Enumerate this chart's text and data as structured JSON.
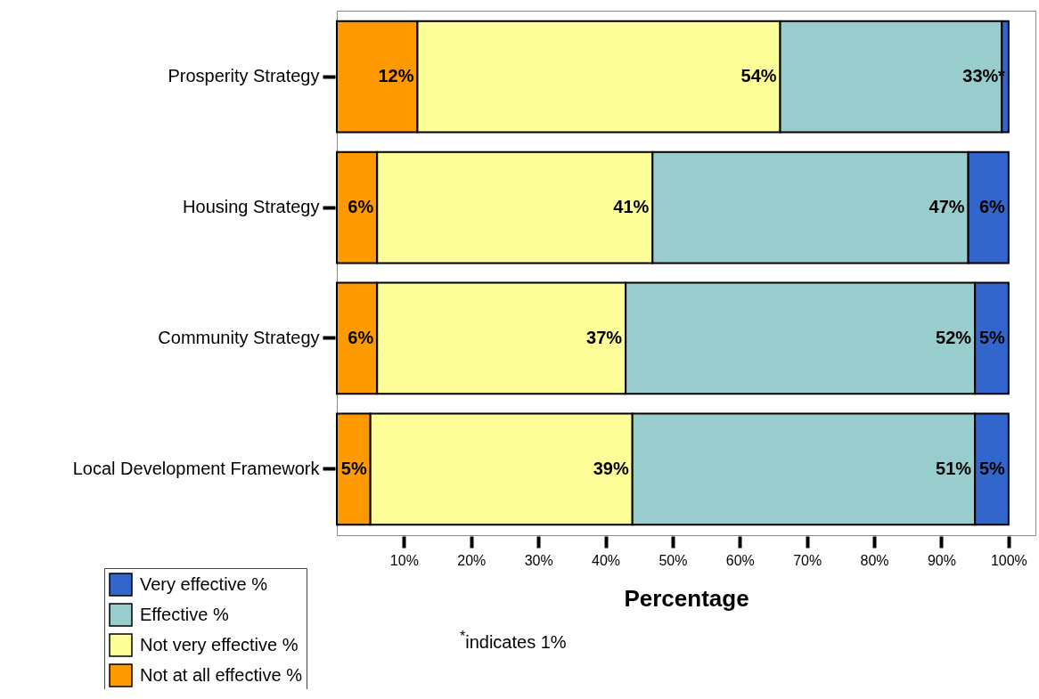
{
  "chart_data": {
    "type": "bar",
    "orientation": "horizontal",
    "stacked": true,
    "categories": [
      "Prosperity Strategy",
      "Housing Strategy",
      "Community Strategy",
      "Local Development Framework"
    ],
    "series": [
      {
        "name": "Not at all effective %",
        "color": "#ff9900",
        "values": [
          12,
          6,
          6,
          5
        ],
        "value_labels": [
          "12%",
          "6%",
          "6%",
          "5%"
        ]
      },
      {
        "name": "Not very effective %",
        "color": "#ffff99",
        "values": [
          54,
          41,
          37,
          39
        ],
        "value_labels": [
          "54%",
          "41%",
          "37%",
          "39%"
        ]
      },
      {
        "name": "Effective %",
        "color": "#99cccc",
        "values": [
          33,
          47,
          52,
          51
        ],
        "value_labels": [
          "33%",
          "47%",
          "52%",
          "51%"
        ]
      },
      {
        "name": "Very effective %",
        "color": "#3366cc",
        "values": [
          1,
          6,
          5,
          5
        ],
        "value_labels": [
          "*",
          "6%",
          "5%",
          "5%"
        ]
      }
    ],
    "xlabel": "Percentage",
    "xlim": [
      0,
      104
    ],
    "xticks": [
      {
        "value": 10,
        "label": "10%"
      },
      {
        "value": 20,
        "label": "20%"
      },
      {
        "value": 30,
        "label": "30%"
      },
      {
        "value": 40,
        "label": "40%"
      },
      {
        "value": 50,
        "label": "50%"
      },
      {
        "value": 60,
        "label": "60%"
      },
      {
        "value": 70,
        "label": "70%"
      },
      {
        "value": 80,
        "label": "80%"
      },
      {
        "value": 90,
        "label": "90%"
      },
      {
        "value": 100,
        "label": "100%"
      }
    ],
    "grid": false,
    "legend": "bottom left",
    "annotations": [
      "$^{*}$indicates 1%"
    ]
  }
}
